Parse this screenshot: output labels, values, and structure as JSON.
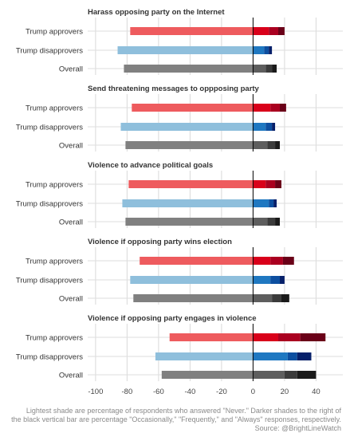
{
  "chart_data": {
    "type": "bar",
    "orientation": "horizontal",
    "stacked": true,
    "xlim": [
      -105,
      57
    ],
    "x_ticks": [
      -100,
      -80,
      -60,
      -40,
      -20,
      0,
      20,
      40
    ],
    "x_tick_labels": [
      "-100",
      "-80",
      "-60",
      "-40",
      "-20",
      "0",
      "20",
      "40"
    ],
    "grid": true,
    "categories": [
      "Trump approvers",
      "Trump disapprovers",
      "Overall"
    ],
    "stack_levels": [
      "Never",
      "Occasionally",
      "Frequently",
      "Always"
    ],
    "panels": [
      {
        "title": "Harass opposing party on the Internet",
        "rows": [
          {
            "category": "Trump approvers",
            "never": 78,
            "occasionally": 10,
            "frequently": 6,
            "always": 4
          },
          {
            "category": "Trump disapprovers",
            "never": 86,
            "occasionally": 7,
            "frequently": 3,
            "always": 2
          },
          {
            "category": "Overall",
            "never": 82,
            "occasionally": 8,
            "frequently": 4,
            "always": 3
          }
        ]
      },
      {
        "title": "Send threatening messages to oppposing party",
        "rows": [
          {
            "category": "Trump approvers",
            "never": 77,
            "occasionally": 11,
            "frequently": 6,
            "always": 4
          },
          {
            "category": "Trump disapprovers",
            "never": 84,
            "occasionally": 8,
            "frequently": 4,
            "always": 2
          },
          {
            "category": "Overall",
            "never": 81,
            "occasionally": 9,
            "frequently": 5,
            "always": 3
          }
        ]
      },
      {
        "title": "Violence to advance political goals",
        "rows": [
          {
            "category": "Trump approvers",
            "never": 79,
            "occasionally": 8,
            "frequently": 6,
            "always": 4
          },
          {
            "category": "Trump disapprovers",
            "never": 83,
            "occasionally": 10,
            "frequently": 3,
            "always": 2
          },
          {
            "category": "Overall",
            "never": 81,
            "occasionally": 9,
            "frequently": 5,
            "always": 3
          }
        ]
      },
      {
        "title": "Violence if opposing party wins election",
        "rows": [
          {
            "category": "Trump approvers",
            "never": 72,
            "occasionally": 11,
            "frequently": 8,
            "always": 7
          },
          {
            "category": "Trump disapprovers",
            "never": 78,
            "occasionally": 11,
            "frequently": 6,
            "always": 3
          },
          {
            "category": "Overall",
            "never": 76,
            "occasionally": 12,
            "frequently": 6,
            "always": 5
          }
        ]
      },
      {
        "title": "Violence if opposing party engages in violence",
        "rows": [
          {
            "category": "Trump approvers",
            "never": 53,
            "occasionally": 16,
            "frequently": 14,
            "always": 16
          },
          {
            "category": "Trump disapprovers",
            "never": 62,
            "occasionally": 22,
            "frequently": 6,
            "always": 9
          },
          {
            "category": "Overall",
            "never": 58,
            "occasionally": 20,
            "frequently": 8,
            "always": 12
          }
        ]
      }
    ],
    "colors": {
      "Trump approvers": [
        "#ee5b5e",
        "#d9001a",
        "#aa0020",
        "#6a0018"
      ],
      "Trump disapprovers": [
        "#8fbfdc",
        "#1f78c1",
        "#0d4fa0",
        "#06206a"
      ],
      "Overall": [
        "#808080",
        "#5e5e5e",
        "#3b3b3b",
        "#1a1a1a"
      ]
    },
    "caption": [
      "Lightest shade are percentage of respondents who answered \"Never.\" Darker shades to the right of",
      "the black vertical bar are percentage \"Occasionally,\" \"Frequently,\" and \"Always\" responses, respectively.",
      "Source: @BrightLineWatch"
    ]
  }
}
